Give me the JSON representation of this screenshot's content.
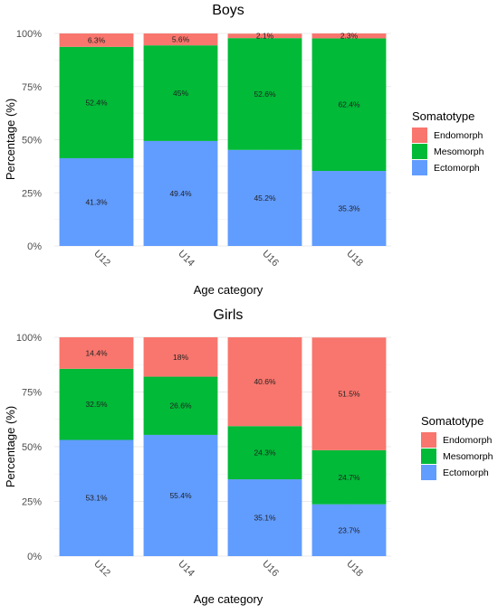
{
  "chart_data": [
    {
      "type": "bar",
      "stacked": true,
      "title": "Boys",
      "xlabel": "Age category",
      "ylabel": "Percentage (%)",
      "categories": [
        "U12",
        "U14",
        "U16",
        "U18"
      ],
      "ylim": [
        0,
        100
      ],
      "yticks": [
        "0%",
        "25%",
        "50%",
        "75%",
        "100%"
      ],
      "series": [
        {
          "name": "Ectomorph",
          "color": "#619CFF",
          "values": [
            41.3,
            49.4,
            45.2,
            35.3
          ],
          "labels": [
            "41.3%",
            "49.4%",
            "45.2%",
            "35.3%"
          ]
        },
        {
          "name": "Mesomorph",
          "color": "#00BA38",
          "values": [
            52.4,
            45,
            52.6,
            62.4
          ],
          "labels": [
            "52.4%",
            "45%",
            "52.6%",
            "62.4%"
          ]
        },
        {
          "name": "Endomorph",
          "color": "#F8766D",
          "values": [
            6.3,
            5.6,
            2.1,
            2.3
          ],
          "labels": [
            "6.3%",
            "5.6%",
            "2.1%",
            "2.3%"
          ]
        }
      ],
      "legend": {
        "title": "Somatotype",
        "items": [
          "Endomorph",
          "Mesomorph",
          "Ectomorph"
        ],
        "position": "right"
      },
      "grid": true
    },
    {
      "type": "bar",
      "stacked": true,
      "title": "Girls",
      "xlabel": "Age category",
      "ylabel": "Percentage (%)",
      "categories": [
        "U12",
        "U14",
        "U16",
        "U18"
      ],
      "ylim": [
        0,
        100
      ],
      "yticks": [
        "0%",
        "25%",
        "50%",
        "75%",
        "100%"
      ],
      "series": [
        {
          "name": "Ectomorph",
          "color": "#619CFF",
          "values": [
            53.1,
            55.4,
            35.1,
            23.7
          ],
          "labels": [
            "53.1%",
            "55.4%",
            "35.1%",
            "23.7%"
          ]
        },
        {
          "name": "Mesomorph",
          "color": "#00BA38",
          "values": [
            32.5,
            26.6,
            24.3,
            24.7
          ],
          "labels": [
            "32.5%",
            "26.6%",
            "24.3%",
            "24.7%"
          ]
        },
        {
          "name": "Endomorph",
          "color": "#F8766D",
          "values": [
            14.4,
            18,
            40.6,
            51.5
          ],
          "labels": [
            "14.4%",
            "18%",
            "40.6%",
            "51.5%"
          ]
        }
      ],
      "legend": {
        "title": "Somatotype",
        "items": [
          "Endomorph",
          "Mesomorph",
          "Ectomorph"
        ],
        "position": "right"
      },
      "grid": true
    }
  ]
}
